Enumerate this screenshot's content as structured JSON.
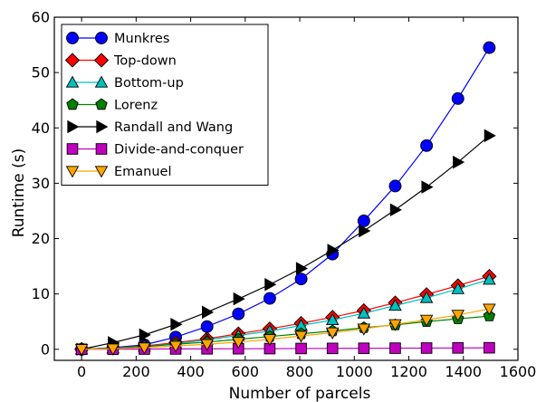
{
  "chart_data": {
    "type": "line",
    "title": "",
    "xlabel": "Number of parcels",
    "ylabel": "Runtime (s)",
    "xlim": [
      -100,
      1600
    ],
    "ylim": [
      -2,
      60
    ],
    "xticks": [
      0,
      200,
      400,
      600,
      800,
      1000,
      1200,
      1400,
      1600
    ],
    "yticks": [
      0,
      10,
      20,
      30,
      40,
      50,
      60
    ],
    "x": [
      0,
      115,
      230,
      345,
      460,
      575,
      690,
      805,
      920,
      1035,
      1150,
      1265,
      1380,
      1495
    ],
    "grid": false,
    "legend_position": "top-left",
    "series": [
      {
        "name": "Munkres",
        "color": "#0000ff",
        "marker": "circle",
        "values": [
          0,
          0.3,
          0.8,
          2.2,
          4.1,
          6.4,
          9.2,
          12.7,
          17.2,
          23.2,
          29.5,
          36.8,
          45.3,
          54.5
        ]
      },
      {
        "name": "Top-down",
        "color": "#ff0000",
        "marker": "diamond",
        "values": [
          0,
          0.2,
          0.6,
          1.2,
          1.9,
          2.8,
          3.7,
          4.7,
          5.8,
          7.0,
          8.4,
          9.9,
          11.5,
          13.2
        ]
      },
      {
        "name": "Bottom-up",
        "color": "#00bfbf",
        "marker": "triangle-up",
        "values": [
          0,
          0.2,
          0.5,
          1.0,
          1.7,
          2.5,
          3.3,
          4.3,
          5.3,
          6.5,
          7.9,
          9.3,
          10.9,
          12.6
        ]
      },
      {
        "name": "Lorenz",
        "color": "#008000",
        "marker": "pentagon",
        "values": [
          0,
          0.2,
          0.5,
          0.9,
          1.3,
          1.8,
          2.3,
          2.8,
          3.3,
          3.9,
          4.4,
          5.0,
          5.5,
          6.0
        ]
      },
      {
        "name": "Randall and Wang",
        "color": "#000000",
        "marker": "triangle-right",
        "values": [
          0,
          1.2,
          2.6,
          4.5,
          6.7,
          9.1,
          11.7,
          14.6,
          17.9,
          21.4,
          25.2,
          29.3,
          33.8,
          38.6
        ]
      },
      {
        "name": "Divide-and-conquer",
        "color": "#bf00bf",
        "marker": "square",
        "values": [
          0,
          0.02,
          0.04,
          0.06,
          0.08,
          0.1,
          0.12,
          0.14,
          0.16,
          0.18,
          0.2,
          0.22,
          0.24,
          0.27
        ]
      },
      {
        "name": "Emanuel",
        "color": "#ffa500",
        "marker": "triangle-down",
        "values": [
          0,
          0.1,
          0.3,
          0.6,
          0.9,
          1.3,
          1.8,
          2.4,
          3.0,
          3.7,
          4.5,
          5.3,
          6.2,
          7.3
        ]
      }
    ]
  }
}
